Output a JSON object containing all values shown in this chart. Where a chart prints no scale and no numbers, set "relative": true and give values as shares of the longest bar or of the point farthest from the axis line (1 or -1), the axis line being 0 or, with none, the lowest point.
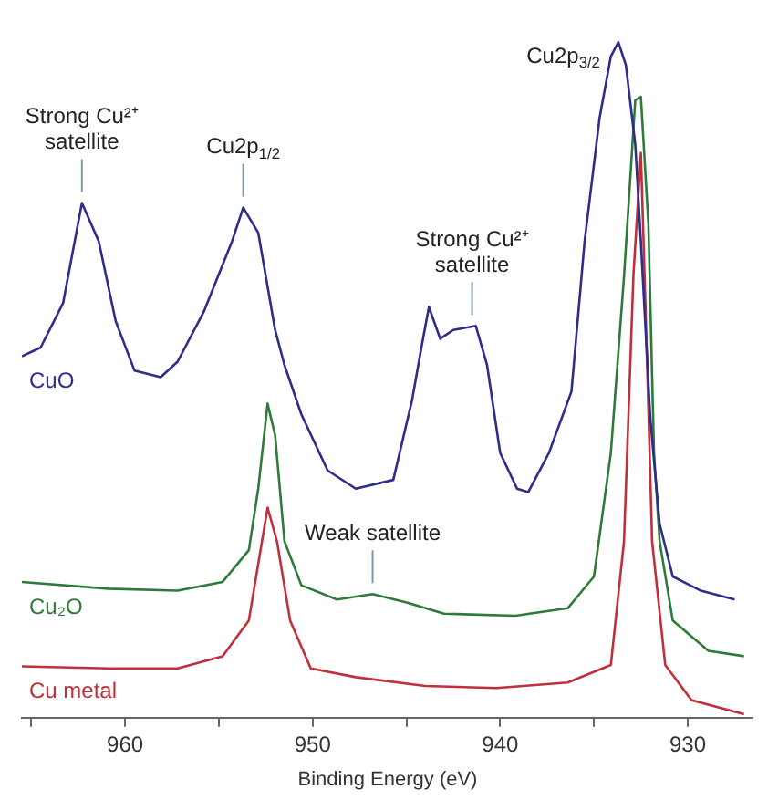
{
  "chart_data": {
    "type": "line",
    "relative": true,
    "xlabel": "Binding Energy (eV)",
    "xlim": [
      965.5,
      926.5
    ],
    "xticks": [
      {
        "value": 965,
        "label": null
      },
      960,
      {
        "value": 955,
        "label": null
      },
      950,
      {
        "value": 945,
        "label": null
      },
      940,
      {
        "value": 935,
        "label": null
      },
      930
    ],
    "grid": false,
    "legend": false,
    "marker": "none",
    "line_style": "solid",
    "series": [
      {
        "name": "CuO",
        "color": "#2e2e8a",
        "x": [
          965.5,
          964.5,
          963.3,
          962.3,
          961.4,
          960.5,
          959.5,
          958.1,
          957.2,
          955.8,
          954.3,
          953.7,
          952.9,
          952.0,
          951.5,
          950.6,
          949.2,
          947.7,
          945.7,
          944.7,
          944.2,
          943.8,
          943.2,
          942.5,
          941.3,
          940.7,
          940.0,
          939.1,
          938.5,
          937.4,
          936.2,
          935.5,
          934.7,
          934.1,
          933.7,
          933.3,
          932.8,
          932.5,
          932.0,
          931.5,
          930.8,
          929.3,
          927.5
        ],
        "values": [
          0.535,
          0.548,
          0.614,
          0.762,
          0.705,
          0.587,
          0.514,
          0.504,
          0.527,
          0.601,
          0.705,
          0.755,
          0.718,
          0.574,
          0.522,
          0.449,
          0.366,
          0.339,
          0.352,
          0.47,
          0.548,
          0.608,
          0.561,
          0.574,
          0.58,
          0.522,
          0.392,
          0.339,
          0.334,
          0.392,
          0.483,
          0.705,
          0.888,
          0.979,
          1,
          0.966,
          0.849,
          0.705,
          0.444,
          0.287,
          0.209,
          0.188,
          0.175
        ]
      },
      {
        "name": "Cu₂O",
        "color": "#2e7a3a",
        "x": [
          965.5,
          960.9,
          957.2,
          954.8,
          953.4,
          952.9,
          952.4,
          952.0,
          951.5,
          950.6,
          948.7,
          946.8,
          944.9,
          943.0,
          939.2,
          936.4,
          935.0,
          934.1,
          933.4,
          932.8,
          932.5,
          932.1,
          931.8,
          931.5,
          930.8,
          928.9,
          927.0
        ],
        "values": [
          0.201,
          0.191,
          0.188,
          0.201,
          0.248,
          0.339,
          0.465,
          0.418,
          0.261,
          0.196,
          0.175,
          0.183,
          0.17,
          0.154,
          0.151,
          0.162,
          0.209,
          0.392,
          0.653,
          0.914,
          0.919,
          0.731,
          0.392,
          0.261,
          0.144,
          0.099,
          0.091
        ]
      },
      {
        "name": "Cu metal",
        "color": "#c0303a",
        "x": [
          965.5,
          960.9,
          957.2,
          954.8,
          953.4,
          952.7,
          952.4,
          951.9,
          951.2,
          950.1,
          947.7,
          944.0,
          940.2,
          936.4,
          934.1,
          933.4,
          932.9,
          932.5,
          932.3,
          931.9,
          931.2,
          929.8,
          927.0
        ],
        "values": [
          0.076,
          0.073,
          0.073,
          0.091,
          0.144,
          0.261,
          0.311,
          0.261,
          0.144,
          0.073,
          0.06,
          0.047,
          0.044,
          0.052,
          0.078,
          0.261,
          0.653,
          0.836,
          0.653,
          0.261,
          0.078,
          0.026,
          0.005
        ]
      }
    ],
    "annotations": [
      {
        "text": "Strong Cu²⁺ satellite",
        "x": 962.3,
        "y": 0.762
      },
      {
        "text": "Cu2p$_{1/2}$",
        "x": 953.7,
        "y": 0.755
      },
      {
        "text": "Strong Cu²⁺ satellite",
        "x": 941.5,
        "y": 0.58
      },
      {
        "text": "Cu2p$_{3/2}$",
        "x": 933.7,
        "y": 1
      },
      {
        "text": "Weak satellite",
        "x": 946.8,
        "y": 0.183
      }
    ]
  }
}
